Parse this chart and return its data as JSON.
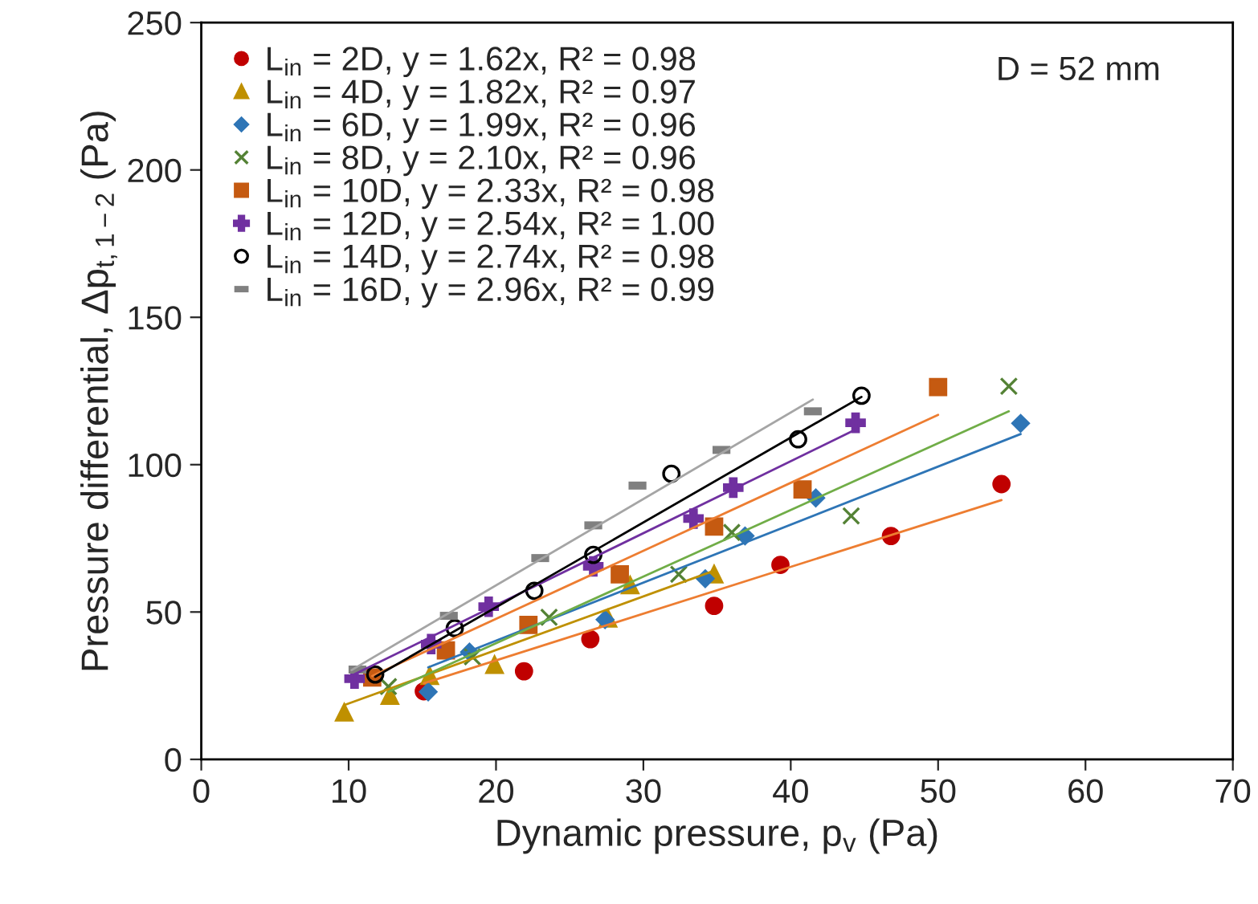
{
  "chart_data": {
    "type": "scatter",
    "xlabel": "Dynamic pressure, p$_{v}$ (Pa)",
    "ylabel": "Pressure differential, Δp$_{t,1−2}$ (Pa)",
    "xlim": [
      0,
      70
    ],
    "xticks": [
      0,
      10,
      20,
      30,
      40,
      50,
      60,
      70
    ],
    "ylim": [
      0,
      250
    ],
    "yticks": [
      0,
      50,
      100,
      150,
      200,
      250
    ],
    "grid": false,
    "legend": "top left",
    "annotations": [
      "D = 52 mm"
    ],
    "series": [
      {
        "name": "L$_{in}$ = 2D, y = 1.62x, R² = 0.98",
        "color": "#c00000",
        "marker": "circle",
        "x": [
          15.1,
          21.9,
          26.4,
          34.8,
          39.3,
          46.8,
          54.3
        ],
        "values": [
          23.1,
          29.9,
          40.8,
          52.1,
          66.0,
          75.8,
          93.4
        ]
      },
      {
        "name": "L$_{in}$ = 4D, y = 1.82x, R² = 0.97",
        "color": "#bf9000",
        "marker": "triangle",
        "x": [
          9.7,
          12.8,
          15.5,
          19.9,
          27.6,
          29.1,
          34.8
        ],
        "values": [
          15.9,
          21.6,
          28.3,
          32.1,
          47.8,
          59.1,
          62.8
        ]
      },
      {
        "name": "L$_{in}$ = 6D, y = 1.99x, R² = 0.96",
        "color": "#2e75b6",
        "marker": "diamond",
        "x": [
          15.4,
          18.2,
          27.4,
          34.2,
          36.9,
          41.7,
          55.6
        ],
        "values": [
          22.9,
          36.4,
          47.4,
          61.3,
          75.8,
          88.7,
          114.0
        ]
      },
      {
        "name": "L$_{in}$ = 8D, y = 2.10x, R² = 0.96",
        "color": "#548235",
        "marker": "cross",
        "x": [
          12.7,
          18.4,
          23.6,
          32.4,
          36.0,
          44.1,
          54.8
        ],
        "values": [
          24.7,
          34.8,
          48.2,
          62.8,
          77.0,
          82.6,
          126.6
        ]
      },
      {
        "name": "L$_{in}$ = 10D, y = 2.33x, R² = 0.98",
        "color": "#c55a11",
        "marker": "square",
        "x": [
          11.6,
          16.6,
          22.2,
          28.4,
          34.8,
          40.8,
          50.0
        ],
        "values": [
          27.8,
          37.0,
          45.6,
          62.8,
          79.0,
          91.6,
          126.3
        ]
      },
      {
        "name": "L$_{in}$ = 12D, y = 2.54x, R² = 1.00",
        "color": "#7030a0",
        "marker": "plus",
        "x": [
          10.4,
          15.6,
          19.5,
          26.6,
          33.4,
          36.1,
          44.4
        ],
        "values": [
          27.4,
          39.1,
          51.8,
          65.5,
          81.7,
          92.2,
          114.2
        ]
      },
      {
        "name": "L$_{in}$ = 14D, y = 2.74x, R² = 0.98",
        "color": "#000000",
        "marker": "open_circle",
        "x": [
          11.8,
          17.2,
          22.6,
          26.6,
          31.9,
          40.5,
          44.8
        ],
        "values": [
          28.8,
          44.5,
          57.2,
          69.4,
          96.9,
          108.6,
          123.4
        ]
      },
      {
        "name": "L$_{in}$ = 16D, y = 2.96x, R² = 0.99",
        "color": "#808080",
        "x": [
          10.6,
          16.8,
          23.0,
          26.6,
          29.6,
          35.3,
          41.5
        ],
        "values": [
          30.5,
          48.7,
          68.3,
          79.4,
          92.9,
          105.0,
          118.1
        ]
      },
      {
        "type": "line",
        "color": "#ed7d31",
        "x": [
          15.1,
          54.3
        ],
        "values": [
          25.8,
          88.0
        ]
      },
      {
        "type": "line",
        "color": "#bf9000",
        "x": [
          9.7,
          34.8
        ],
        "values": [
          18.4,
          64.0
        ]
      },
      {
        "type": "line",
        "color": "#2e75b6",
        "x": [
          15.4,
          55.6
        ],
        "values": [
          31.2,
          110.4
        ]
      },
      {
        "type": "line",
        "color": "#70ad47",
        "x": [
          12.7,
          54.8
        ],
        "values": [
          22.9,
          118.1
        ]
      },
      {
        "type": "line",
        "color": "#ed7d31",
        "x": [
          11.6,
          50.0
        ],
        "values": [
          28.3,
          116.9
        ]
      },
      {
        "type": "line",
        "color": "#7030a0",
        "x": [
          10.4,
          44.4
        ],
        "values": [
          28.9,
          111.9
        ]
      },
      {
        "type": "line",
        "color": "#000000",
        "x": [
          11.8,
          44.8
        ],
        "values": [
          28.0,
          123.0
        ]
      },
      {
        "type": "line",
        "color": "#a5a5a5",
        "x": [
          10.2,
          41.5
        ],
        "values": [
          30.3,
          122.1
        ]
      }
    ]
  }
}
